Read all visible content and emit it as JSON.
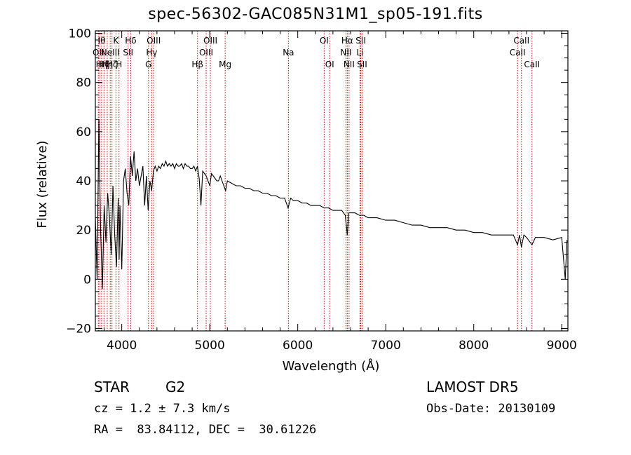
{
  "title": "spec-56302-GAC085N31M1_sp05-191.fits",
  "info": {
    "class": "STAR",
    "subclass": "G2",
    "cz": "cz = 1.2 ± 7.3 km/s",
    "radec": "RA =  83.84112, DEC =  30.61226",
    "survey": "LAMOST DR5",
    "obsdate": "Obs-Date: 20130109"
  },
  "colors": {
    "spectrum": "#000000",
    "lines": "#cc0000",
    "axes": "#000000"
  },
  "chart_data": {
    "type": "line",
    "title": "spec-56302-GAC085N31M1_sp05-191.fits",
    "xlabel": "Wavelength (Å)",
    "ylabel": "Flux (relative)",
    "xlim": [
      3700,
      9070
    ],
    "ylim": [
      -21,
      101
    ],
    "xticks": [
      4000,
      5000,
      6000,
      7000,
      8000,
      9000
    ],
    "xtick_labels": [
      "4000",
      "5000",
      "6000",
      "7000",
      "8000",
      "9000"
    ],
    "yticks": [
      -20,
      0,
      20,
      40,
      60,
      80,
      100
    ],
    "ytick_labels": [
      "−20",
      "0",
      "20",
      "40",
      "60",
      "80",
      "100"
    ],
    "grid": false,
    "series": [
      {
        "x": [
          3700,
          3720,
          3740,
          3760,
          3780,
          3800,
          3820,
          3840,
          3860,
          3880,
          3900,
          3920,
          3940,
          3960,
          3970,
          3980,
          4000,
          4020,
          4040,
          4060,
          4080,
          4100,
          4120,
          4140,
          4160,
          4180,
          4200,
          4220,
          4240,
          4260,
          4280,
          4300,
          4320,
          4340,
          4360,
          4380,
          4400,
          4420,
          4440,
          4460,
          4480,
          4500,
          4520,
          4540,
          4560,
          4580,
          4600,
          4620,
          4640,
          4660,
          4680,
          4700,
          4720,
          4740,
          4760,
          4780,
          4800,
          4820,
          4840,
          4860,
          4880,
          4900,
          4920,
          4940,
          4960,
          4980,
          5000,
          5020,
          5040,
          5060,
          5080,
          5100,
          5120,
          5140,
          5160,
          5180,
          5200,
          5250,
          5300,
          5350,
          5400,
          5450,
          5500,
          5550,
          5600,
          5650,
          5700,
          5750,
          5800,
          5850,
          5890,
          5920,
          5950,
          6000,
          6050,
          6100,
          6150,
          6200,
          6250,
          6300,
          6350,
          6400,
          6450,
          6500,
          6540,
          6563,
          6580,
          6600,
          6650,
          6700,
          6750,
          6800,
          6900,
          7000,
          7100,
          7200,
          7300,
          7400,
          7500,
          7600,
          7700,
          7800,
          7900,
          8000,
          8100,
          8200,
          8300,
          8400,
          8450,
          8498,
          8520,
          8542,
          8570,
          8600,
          8662,
          8700,
          8800,
          8900,
          9000,
          9040,
          9060
        ],
        "y": [
          25,
          0,
          65,
          20,
          -4,
          30,
          15,
          35,
          25,
          10,
          38,
          18,
          5,
          33,
          8,
          30,
          4,
          40,
          45,
          35,
          30,
          50,
          42,
          52,
          40,
          45,
          38,
          42,
          46,
          30,
          42,
          28,
          40,
          36,
          44,
          46,
          44,
          46,
          45,
          47,
          46,
          48,
          46,
          47,
          46,
          47,
          45,
          47,
          46,
          46,
          47,
          45,
          47,
          46,
          46,
          45,
          45,
          46,
          44,
          46,
          41,
          30,
          44,
          43,
          42,
          40,
          38,
          43,
          42,
          41,
          40,
          40,
          42,
          40,
          38,
          36,
          40,
          39,
          38,
          38,
          37,
          37,
          36,
          36,
          35,
          35,
          34,
          34,
          33,
          33,
          29,
          33,
          32,
          32,
          31,
          31,
          30,
          30,
          30,
          29,
          29,
          28,
          28,
          28,
          26,
          18,
          27,
          27,
          27,
          26,
          26,
          25,
          25,
          24,
          24,
          23,
          22,
          22,
          21,
          21,
          21,
          20,
          20,
          19,
          19,
          18,
          18,
          18,
          18,
          14,
          18,
          13,
          18,
          17,
          14,
          17,
          17,
          16,
          17,
          0,
          16
        ]
      }
    ],
    "lines": [
      {
        "wave": 3734,
        "label": "OII",
        "row": 2
      },
      {
        "wave": 3750,
        "label": "Hθ",
        "row": 1
      },
      {
        "wave": 3771,
        "label": "Hη",
        "row": 3
      },
      {
        "wave": 3798,
        "label": "Hζ",
        "row": 3
      },
      {
        "wave": 3835,
        "label": "Hη",
        "row": 3
      },
      {
        "wave": 3869,
        "label": "NeIII",
        "row": 2
      },
      {
        "wave": 3889,
        "label": "Hζ",
        "row": 3
      },
      {
        "wave": 3934,
        "label": "K",
        "row": 1
      },
      {
        "wave": 3969,
        "label": "H",
        "row": 3
      },
      {
        "wave": 4072,
        "label": "SII",
        "row": 2
      },
      {
        "wave": 4102,
        "label": "Hδ",
        "row": 1
      },
      {
        "wave": 4304,
        "label": "G",
        "row": 3
      },
      {
        "wave": 4341,
        "label": "Hγ",
        "row": 2
      },
      {
        "wave": 4363,
        "label": "OIII",
        "row": 1
      },
      {
        "wave": 4861,
        "label": "Hβ",
        "row": 3
      },
      {
        "wave": 4959,
        "label": "OIII",
        "row": 2
      },
      {
        "wave": 5007,
        "label": "OIII",
        "row": 1
      },
      {
        "wave": 5175,
        "label": "Mg",
        "row": 3
      },
      {
        "wave": 5894,
        "label": "Na",
        "row": 2
      },
      {
        "wave": 6300,
        "label": "OI",
        "row": 1
      },
      {
        "wave": 6363,
        "label": "OI",
        "row": 3
      },
      {
        "wave": 6548,
        "label": "NII",
        "row": 2
      },
      {
        "wave": 6563,
        "label": "Hα",
        "row": 1
      },
      {
        "wave": 6583,
        "label": "NII",
        "row": 3
      },
      {
        "wave": 6707,
        "label": "Li",
        "row": 2
      },
      {
        "wave": 6716,
        "label": "SII",
        "row": 1
      },
      {
        "wave": 6731,
        "label": "SII",
        "row": 3
      },
      {
        "wave": 8498,
        "label": "CaII",
        "row": 2
      },
      {
        "wave": 8542,
        "label": "CaII",
        "row": 1
      },
      {
        "wave": 8662,
        "label": "CaII",
        "row": 3
      }
    ]
  }
}
